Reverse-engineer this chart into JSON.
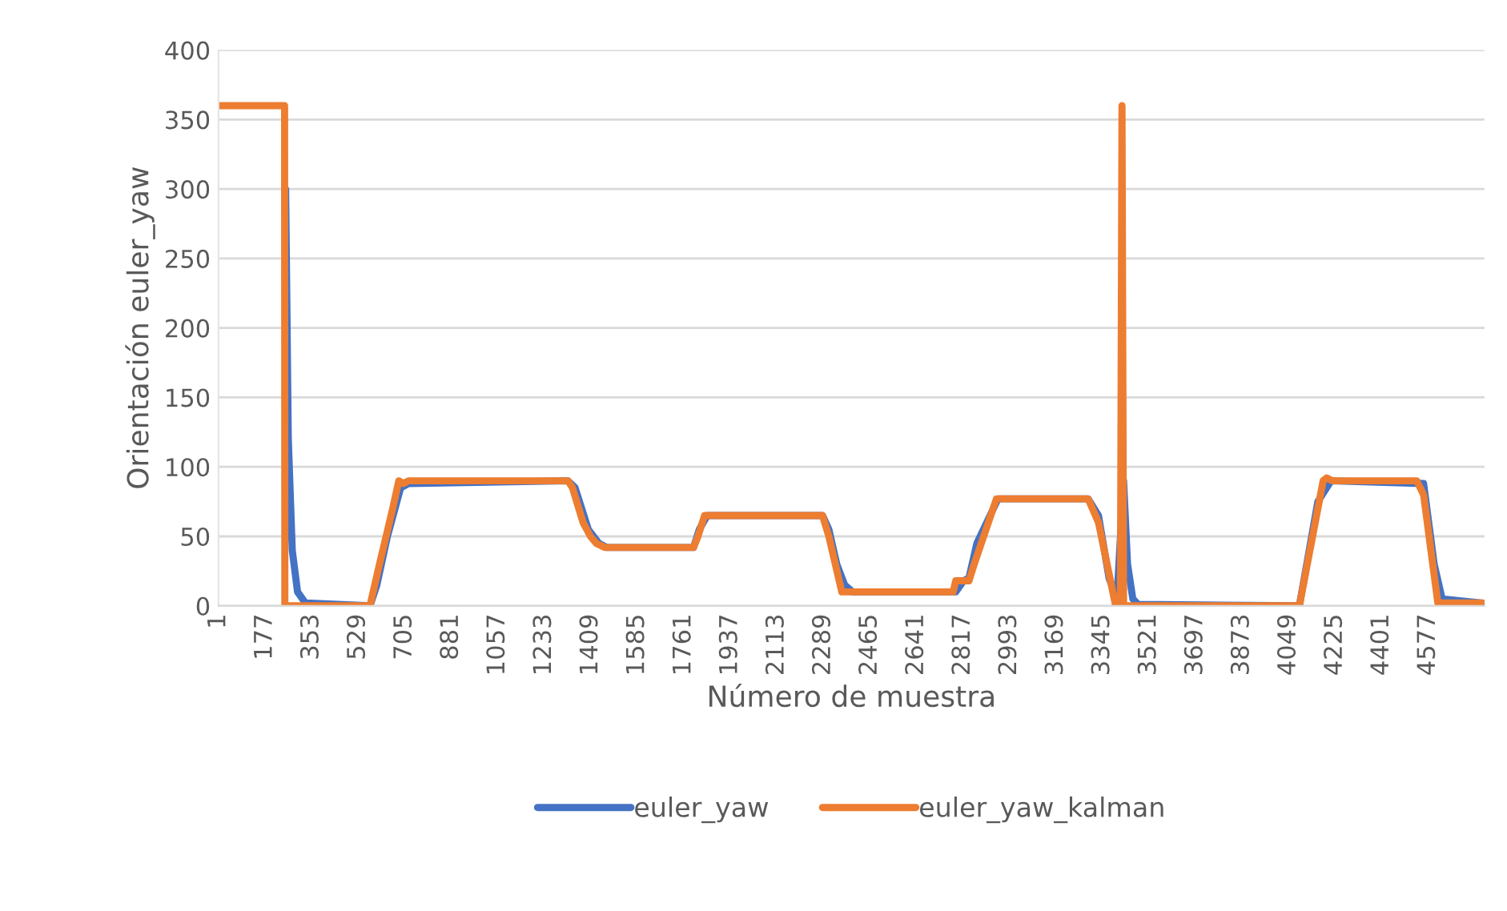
{
  "chart_data": {
    "type": "line",
    "xlabel": "Número de muestra",
    "ylabel": "Orientación euler_yaw",
    "xlim": [
      1,
      4790
    ],
    "xticks": [
      1,
      177,
      353,
      529,
      705,
      881,
      1057,
      1233,
      1409,
      1585,
      1761,
      1937,
      2113,
      2289,
      2465,
      2641,
      2817,
      2993,
      3169,
      3345,
      3521,
      3697,
      3873,
      4049,
      4225,
      4401,
      4577
    ],
    "ylim": [
      0,
      400
    ],
    "yticks": [
      0,
      50,
      100,
      150,
      200,
      250,
      300,
      350,
      400
    ],
    "grid": "y",
    "legend": "bottom",
    "line_style": "solid",
    "marker": "none",
    "series": [
      {
        "name": "euler_yaw",
        "color": "#4472c4",
        "x": [
          255,
          265,
          280,
          300,
          330,
          574,
          600,
          640,
          690,
          720,
          1323,
          1350,
          1400,
          1440,
          1470,
          1798,
          1820,
          1850,
          2286,
          2310,
          2340,
          2370,
          2400,
          2790,
          2820,
          2840,
          2870,
          2950,
          3291,
          3330,
          3370,
          3400,
          3425,
          3440,
          3460,
          3480,
          4090,
          4160,
          4210,
          4560,
          4600,
          4630,
          4784
        ],
        "values": [
          300,
          120,
          40,
          10,
          2,
          0,
          15,
          50,
          85,
          88,
          90,
          85,
          55,
          45,
          42,
          42,
          55,
          65,
          65,
          55,
          30,
          15,
          10,
          10,
          18,
          20,
          45,
          77,
          77,
          65,
          20,
          5,
          90,
          30,
          5,
          1,
          0,
          75,
          90,
          88,
          30,
          5,
          2
        ]
      },
      {
        "name": "euler_yaw_kalman",
        "color": "#ed7d31",
        "x": [
          1,
          251,
          252,
          574,
          610,
          660,
          683,
          700,
          720,
          1323,
          1340,
          1380,
          1408,
          1430,
          1463,
          1798,
          1815,
          1840,
          2286,
          2310,
          2359,
          2780,
          2790,
          2840,
          2860,
          2944,
          3291,
          3330,
          3395,
          3413,
          3419,
          3425,
          4090,
          4130,
          4180,
          4193,
          4215,
          4534,
          4560,
          4614,
          4784
        ],
        "values": [
          360,
          360,
          0,
          0,
          30,
          70,
          90,
          88,
          90,
          90,
          85,
          60,
          50,
          45,
          42,
          42,
          50,
          65,
          65,
          50,
          10,
          10,
          18,
          18,
          30,
          77,
          77,
          60,
          0,
          0,
          360,
          0,
          0,
          40,
          90,
          92,
          90,
          90,
          80,
          2,
          2
        ]
      }
    ]
  }
}
